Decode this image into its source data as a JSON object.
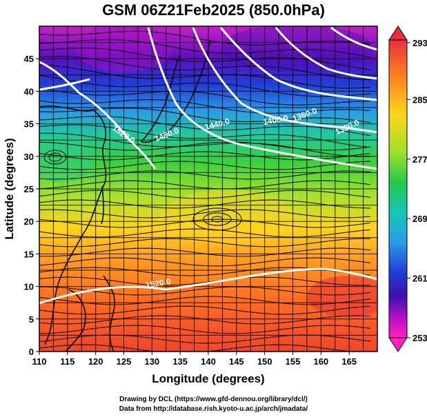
{
  "title": "GSM 06Z21Feb2025 (850.0hPa)",
  "x_axis": {
    "label": "Longitude (degrees)",
    "ticks": [
      "110",
      "115",
      "120",
      "125",
      "130",
      "135",
      "140",
      "145",
      "150",
      "155",
      "160",
      "165"
    ],
    "range": [
      110,
      170
    ]
  },
  "y_axis": {
    "label": "Latitude  (degrees)",
    "ticks": [
      "0",
      "5",
      "10",
      "15",
      "20",
      "25",
      "30",
      "35",
      "40",
      "45"
    ],
    "range": [
      0,
      50
    ]
  },
  "colorbar": {
    "labels": [
      "293",
      "285",
      "277",
      "269",
      "261",
      "253"
    ],
    "min": 253,
    "max": 293,
    "colors_top_to_bottom": [
      "#e8303c",
      "#ff7f1f",
      "#ffd51a",
      "#9be22a",
      "#23c84a",
      "#13c8b8",
      "#2a9be8",
      "#1f3fd8",
      "#3a10b0",
      "#b010c8",
      "#ff20c0"
    ]
  },
  "contour_labels": [
    "1520.0",
    "1480.0",
    "1440.0",
    "1400.0",
    "1360.0",
    "1320.0",
    "1520.0"
  ],
  "credits": {
    "line1": "Drawing by DCL (https://www.gfd-dennou.org/library/dcl/)",
    "line2": "Data from http://database.rish.kyoto-u.ac.jp/arch/jmadata/"
  }
}
